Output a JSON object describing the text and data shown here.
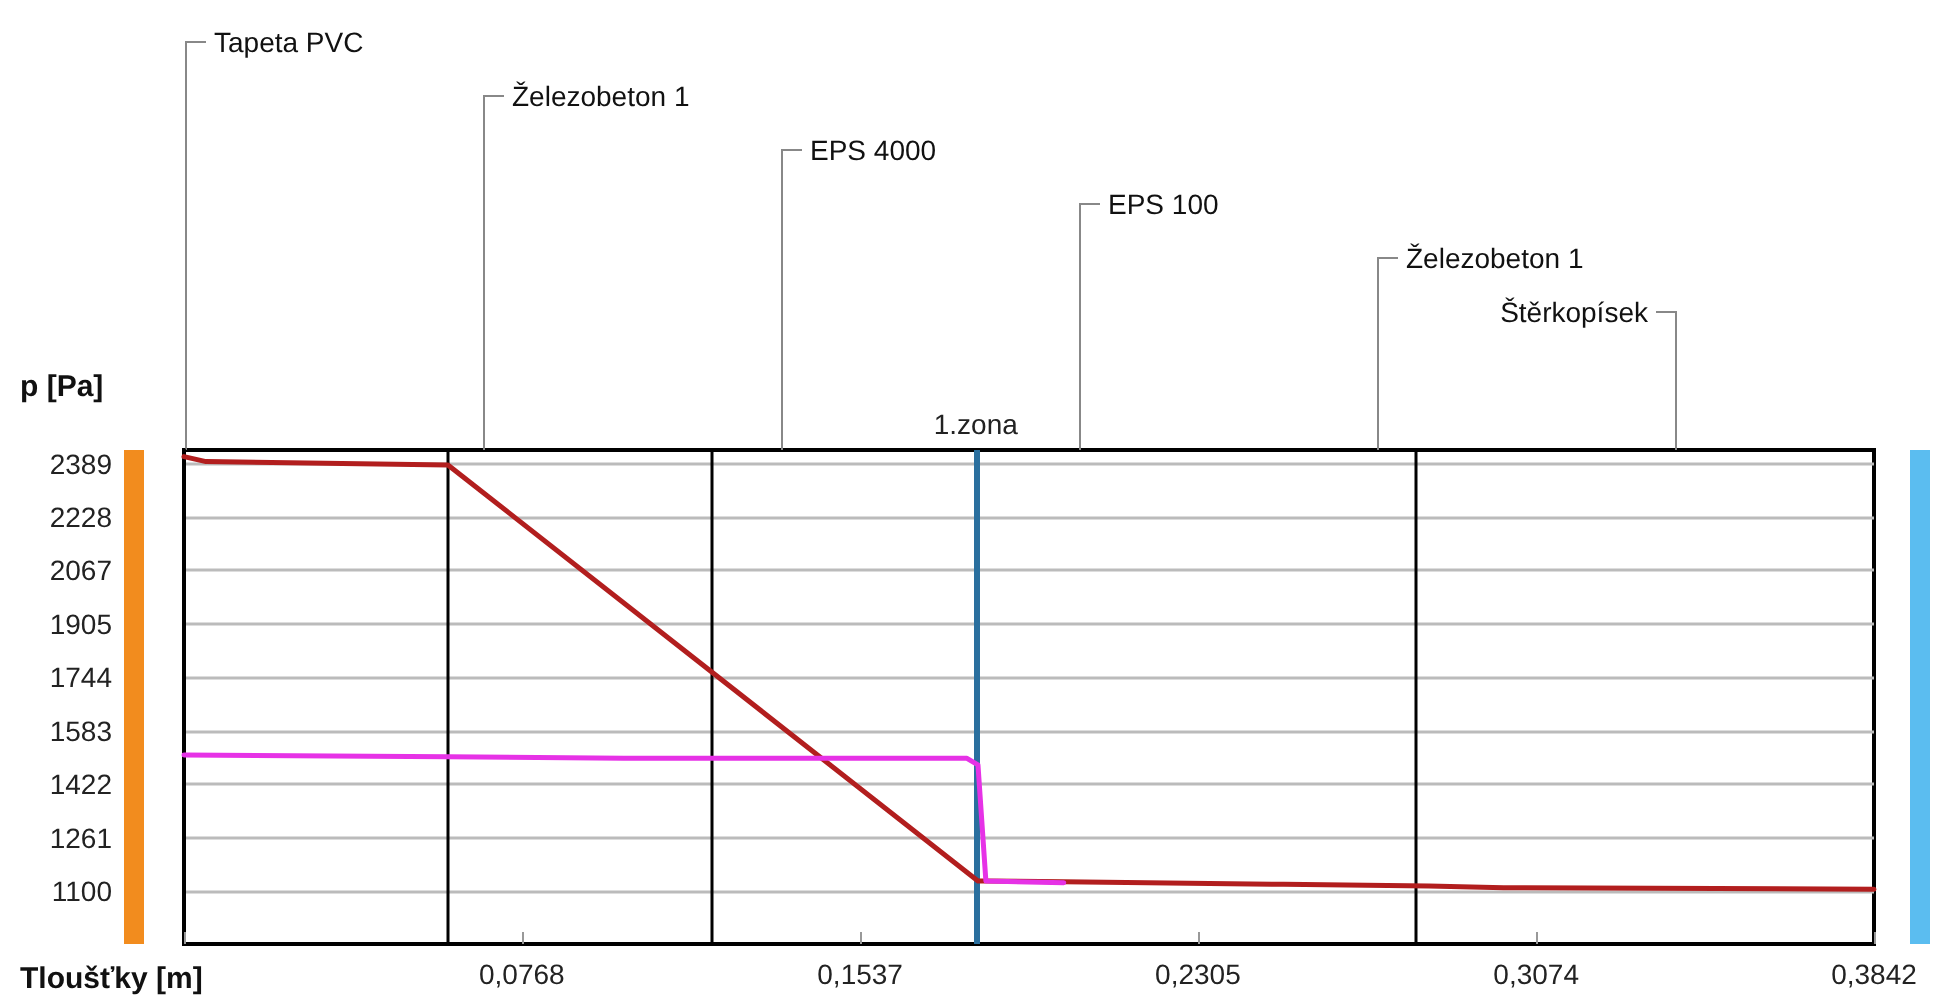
{
  "chart_data": {
    "type": "line",
    "xlabel": "Tloušťky [m]",
    "ylabel": "p [Pa]",
    "xlim": [
      0,
      0.3842
    ],
    "xticks": [
      {
        "value": 0,
        "label": null
      },
      {
        "value": 0.0768,
        "label": "0,0768"
      },
      {
        "value": 0.1537,
        "label": "0,1537"
      },
      {
        "value": 0.2305,
        "label": "0,2305"
      },
      {
        "value": 0.3074,
        "label": "0,3074"
      },
      {
        "value": 0.3842,
        "label": "0,3842"
      }
    ],
    "ylim": [
      940,
      2430
    ],
    "yticks": [
      1100,
      1261,
      1422,
      1583,
      1744,
      1905,
      2067,
      2228,
      2389
    ],
    "grid": "y",
    "marker": "none",
    "line_style": "solid",
    "series": [
      {
        "color": "#b21e1e",
        "x": [
          0,
          0.005,
          0.06,
          0.1805,
          0.1823,
          0.2,
          0.25,
          0.283,
          0.3,
          0.3842
        ],
        "values": [
          2410,
          2395,
          2385,
          1130,
          1130,
          1128,
          1120,
          1115,
          1110,
          1105
        ]
      },
      {
        "color": "#e632e6",
        "x": [
          0,
          0.06,
          0.1,
          0.178,
          0.1805,
          0.1823,
          0.2
        ],
        "values": [
          1510,
          1505,
          1500,
          1500,
          1480,
          1130,
          1125
        ]
      }
    ],
    "ref_lines": [
      {
        "axis": "x",
        "value": 0.061,
        "color": "#000000"
      },
      {
        "axis": "x",
        "value": 0.121,
        "color": "#000000"
      },
      {
        "axis": "x",
        "value": 0.28,
        "color": "#000000"
      },
      {
        "axis": "x",
        "value": 0.18,
        "label": "1.zona",
        "color": "#2a6f9e"
      }
    ],
    "annotations": [
      "Tapeta PVC",
      "Železobeton 1",
      "EPS 4000",
      "EPS 100",
      "Železobeton 1",
      "Štěrkopísek"
    ]
  }
}
